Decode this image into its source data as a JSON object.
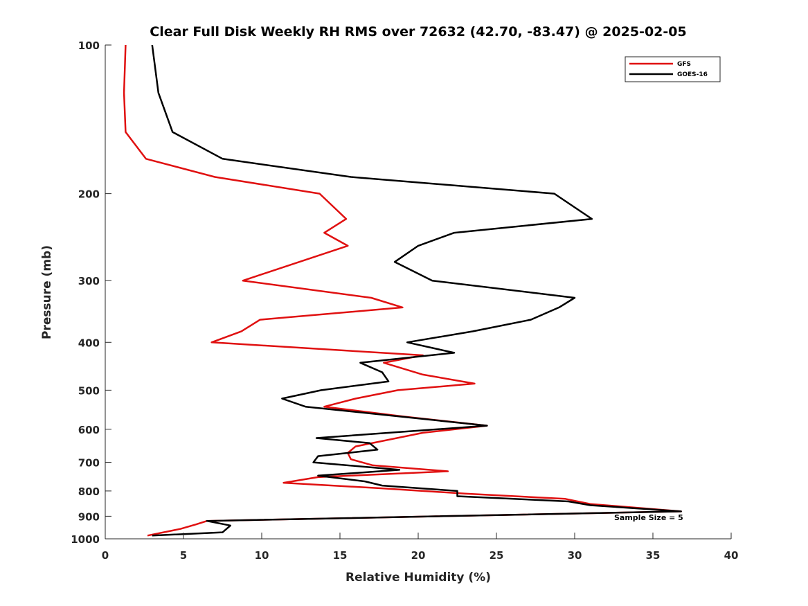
{
  "chart_data": {
    "type": "line",
    "title": "Clear Full Disk Weekly RH RMS over 72632 (42.70, -83.47) @ 2025-02-05",
    "xlabel": "Relative Humidity (%)",
    "ylabel": "Pressure (mb)",
    "xlim": [
      0,
      40
    ],
    "ylim": [
      100,
      1000
    ],
    "y_scale": "log",
    "y_reversed": true,
    "x_ticks": [
      0,
      5,
      10,
      15,
      20,
      25,
      30,
      35,
      40
    ],
    "y_ticks": [
      100,
      200,
      300,
      400,
      500,
      600,
      700,
      800,
      900,
      1000
    ],
    "grid": false,
    "legend_position": "top-right",
    "annotation": "Sample Size = 5",
    "series": [
      {
        "name": "GFS",
        "color": "#e01010",
        "points": [
          [
            1.3,
            100
          ],
          [
            1.2,
            125
          ],
          [
            1.3,
            150
          ],
          [
            2.6,
            170
          ],
          [
            7.0,
            185
          ],
          [
            13.7,
            200
          ],
          [
            15.4,
            225
          ],
          [
            14.0,
            240
          ],
          [
            15.5,
            255
          ],
          [
            8.8,
            300
          ],
          [
            17.0,
            325
          ],
          [
            19.0,
            340
          ],
          [
            9.9,
            360
          ],
          [
            8.7,
            380
          ],
          [
            6.8,
            400
          ],
          [
            20.3,
            425
          ],
          [
            17.8,
            440
          ],
          [
            20.3,
            465
          ],
          [
            23.6,
            485
          ],
          [
            18.7,
            500
          ],
          [
            16.0,
            520
          ],
          [
            14.0,
            540
          ],
          [
            19.0,
            565
          ],
          [
            24.4,
            590
          ],
          [
            20.3,
            610
          ],
          [
            16.0,
            650
          ],
          [
            15.5,
            670
          ],
          [
            15.7,
            690
          ],
          [
            17.1,
            710
          ],
          [
            21.9,
            730
          ],
          [
            13.6,
            750
          ],
          [
            11.4,
            770
          ],
          [
            17.6,
            790
          ],
          [
            23.0,
            810
          ],
          [
            29.4,
            830
          ],
          [
            31.0,
            850
          ],
          [
            36.8,
            880
          ],
          [
            6.5,
            920
          ],
          [
            5.8,
            935
          ],
          [
            4.8,
            955
          ],
          [
            2.7,
            985
          ]
        ]
      },
      {
        "name": "GOES-16",
        "color": "#000000",
        "points": [
          [
            3.0,
            100
          ],
          [
            3.4,
            125
          ],
          [
            4.3,
            150
          ],
          [
            7.5,
            170
          ],
          [
            15.7,
            185
          ],
          [
            28.7,
            200
          ],
          [
            31.1,
            225
          ],
          [
            22.3,
            240
          ],
          [
            20.0,
            255
          ],
          [
            18.5,
            275
          ],
          [
            20.9,
            300
          ],
          [
            30.0,
            325
          ],
          [
            29.0,
            340
          ],
          [
            27.2,
            360
          ],
          [
            23.5,
            380
          ],
          [
            19.3,
            400
          ],
          [
            22.3,
            420
          ],
          [
            16.3,
            440
          ],
          [
            17.7,
            460
          ],
          [
            18.1,
            480
          ],
          [
            13.8,
            500
          ],
          [
            11.3,
            520
          ],
          [
            12.8,
            540
          ],
          [
            24.4,
            590
          ],
          [
            13.5,
            625
          ],
          [
            16.9,
            640
          ],
          [
            17.4,
            660
          ],
          [
            13.6,
            680
          ],
          [
            13.3,
            700
          ],
          [
            18.8,
            725
          ],
          [
            13.6,
            745
          ],
          [
            16.6,
            765
          ],
          [
            17.7,
            780
          ],
          [
            22.5,
            800
          ],
          [
            22.5,
            820
          ],
          [
            29.6,
            840
          ],
          [
            31.0,
            855
          ],
          [
            36.8,
            880
          ],
          [
            6.5,
            920
          ],
          [
            8.0,
            940
          ],
          [
            7.5,
            970
          ],
          [
            3.0,
            985
          ]
        ]
      }
    ]
  }
}
